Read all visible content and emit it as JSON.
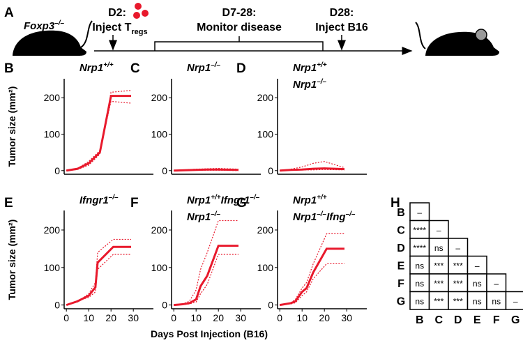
{
  "timeline": {
    "panel": "A",
    "strain": [
      "Foxp3",
      "–/–"
    ],
    "steps": [
      {
        "day": "D2:",
        "label": [
          "Inject T",
          "regs"
        ]
      },
      {
        "day": "D7-28:",
        "label": [
          "Monitor disease"
        ]
      },
      {
        "day": "D28:",
        "label": [
          "Inject B16"
        ]
      }
    ]
  },
  "x_axis_label": "Days Post Injection (B16)",
  "chart_data": [
    {
      "type": "line",
      "panel": "B",
      "title_lines": [
        [
          "Nrp1",
          "+/+"
        ]
      ],
      "ylabel": "Tumor size (mm²)",
      "x": [
        0,
        5,
        10,
        15,
        20,
        29
      ],
      "xlim": [
        -1,
        39
      ],
      "xticks": [],
      "ylim": [
        -10,
        252
      ],
      "yticks": [
        0,
        100,
        200
      ],
      "series": [
        {
          "color": "#e8192c",
          "style": "solid",
          "values": [
            0,
            5,
            20,
            50,
            205,
            205
          ]
        },
        {
          "color": "#e8192c",
          "style": "dotted",
          "values": [
            0,
            3,
            15,
            45,
            215,
            220
          ]
        },
        {
          "color": "#e8192c",
          "style": "dotted",
          "values": [
            0,
            6,
            25,
            55,
            190,
            185
          ]
        }
      ]
    },
    {
      "type": "line",
      "panel": "C",
      "title_lines": [
        [
          "Nrp1",
          "–/–"
        ]
      ],
      "x": [
        0,
        5,
        10,
        15,
        20,
        29
      ],
      "xlim": [
        -1,
        39
      ],
      "xticks": [],
      "ylim": [
        -10,
        252
      ],
      "yticks": [
        0,
        100,
        200
      ],
      "series": [
        {
          "color": "#e8192c",
          "style": "solid",
          "values": [
            0,
            1,
            2,
            3,
            3,
            2
          ]
        },
        {
          "color": "#e8192c",
          "style": "dotted",
          "values": [
            0,
            2,
            4,
            5,
            6,
            4
          ]
        },
        {
          "color": "#e8192c",
          "style": "dotted",
          "values": [
            0,
            0,
            1,
            1,
            1,
            0
          ]
        }
      ]
    },
    {
      "type": "line",
      "panel": "D",
      "title_lines": [
        [
          "Nrp1",
          "+/+"
        ],
        [
          "Nrp1",
          "–/–"
        ]
      ],
      "x": [
        0,
        5,
        10,
        15,
        20,
        29
      ],
      "xlim": [
        -1,
        39
      ],
      "xticks": [],
      "ylim": [
        -10,
        252
      ],
      "yticks": [
        0,
        100,
        200
      ],
      "series": [
        {
          "color": "#e8192c",
          "style": "solid",
          "values": [
            0,
            2,
            3,
            5,
            6,
            4
          ]
        },
        {
          "color": "#e8192c",
          "style": "dotted",
          "values": [
            0,
            4,
            10,
            20,
            25,
            8
          ]
        },
        {
          "color": "#e8192c",
          "style": "dotted",
          "values": [
            0,
            1,
            2,
            2,
            3,
            2
          ]
        }
      ]
    },
    {
      "type": "line",
      "panel": "E",
      "title_lines": [
        [
          "Ifngr1",
          "–/–"
        ]
      ],
      "ylabel": "Tumor size (mm²)",
      "x": [
        0,
        5,
        10,
        13,
        14,
        21,
        29
      ],
      "xlim": [
        -1,
        39
      ],
      "xticks": [
        0,
        10,
        20,
        30
      ],
      "ylim": [
        -10,
        252
      ],
      "yticks": [
        0,
        100,
        200
      ],
      "series": [
        {
          "color": "#e8192c",
          "style": "solid",
          "values": [
            0,
            10,
            25,
            47,
            113,
            155,
            155
          ]
        },
        {
          "color": "#e8192c",
          "style": "dotted",
          "values": [
            0,
            8,
            30,
            60,
            140,
            175,
            175
          ]
        },
        {
          "color": "#e8192c",
          "style": "dotted",
          "values": [
            0,
            12,
            20,
            35,
            95,
            135,
            135
          ]
        }
      ]
    },
    {
      "type": "line",
      "panel": "F",
      "title_lines": [
        [
          "Nrp1",
          "+/+",
          "Ifngr1",
          "–/–"
        ],
        [
          "Nrp1",
          "–/–"
        ]
      ],
      "x": [
        0,
        4,
        7,
        10,
        12,
        15,
        20,
        29
      ],
      "xlim": [
        -1,
        39
      ],
      "xticks": [
        0,
        10,
        20,
        30
      ],
      "ylim": [
        -10,
        252
      ],
      "yticks": [
        0,
        100,
        200
      ],
      "series": [
        {
          "color": "#e8192c",
          "style": "solid",
          "values": [
            0,
            2,
            5,
            15,
            50,
            78,
            158,
            158
          ]
        },
        {
          "color": "#e8192c",
          "style": "dotted",
          "values": [
            0,
            3,
            10,
            40,
            95,
            140,
            225,
            225
          ]
        },
        {
          "color": "#e8192c",
          "style": "dotted",
          "values": [
            0,
            1,
            3,
            8,
            30,
            55,
            135,
            135
          ]
        }
      ]
    },
    {
      "type": "line",
      "panel": "G",
      "title_lines": [
        [
          "Nrp1",
          "+/+"
        ],
        [
          "Nrp1",
          "–/–",
          "Ifng",
          "–/–"
        ]
      ],
      "x": [
        0,
        5,
        7,
        10,
        12,
        15,
        21,
        29
      ],
      "xlim": [
        -1,
        39
      ],
      "xticks": [
        0,
        10,
        20,
        30
      ],
      "ylim": [
        -10,
        252
      ],
      "yticks": [
        0,
        100,
        200
      ],
      "series": [
        {
          "color": "#e8192c",
          "style": "solid",
          "values": [
            0,
            5,
            10,
            35,
            45,
            87,
            150,
            150
          ]
        },
        {
          "color": "#e8192c",
          "style": "dotted",
          "values": [
            0,
            6,
            15,
            45,
            60,
            110,
            190,
            190
          ]
        },
        {
          "color": "#e8192c",
          "style": "dotted",
          "values": [
            0,
            3,
            6,
            25,
            35,
            70,
            110,
            110
          ]
        }
      ]
    }
  ],
  "matrix": {
    "panel": "H",
    "rows": [
      "B",
      "C",
      "D",
      "E",
      "F",
      "G"
    ],
    "cols": [
      "B",
      "C",
      "D",
      "E",
      "F",
      "G"
    ],
    "cells": [
      [
        "–"
      ],
      [
        "****",
        "–"
      ],
      [
        "****",
        "ns",
        "–"
      ],
      [
        "ns",
        "***",
        "***",
        "–"
      ],
      [
        "ns",
        "***",
        "***",
        "ns",
        "–"
      ],
      [
        "ns",
        "***",
        "***",
        "ns",
        "ns",
        "–"
      ]
    ]
  }
}
